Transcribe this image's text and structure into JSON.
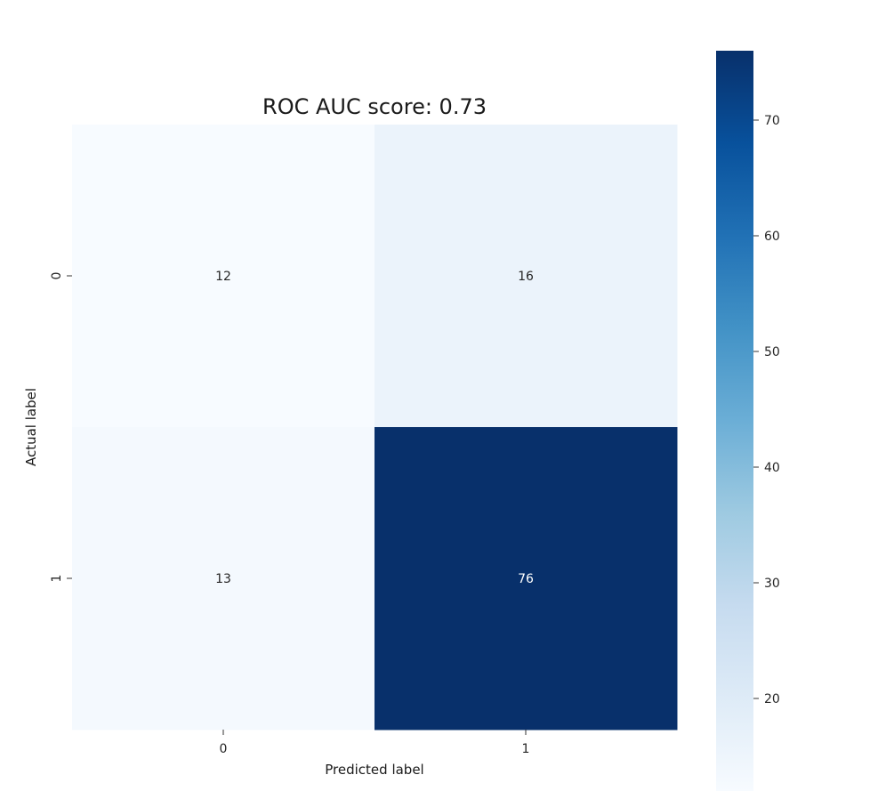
{
  "chart_data": {
    "type": "heatmap",
    "title": "ROC AUC score: 0.73",
    "xlabel": "Predicted label",
    "ylabel": "Actual label",
    "x_categories": [
      "0",
      "1"
    ],
    "y_categories": [
      "0",
      "1"
    ],
    "values": [
      [
        12,
        16
      ],
      [
        13,
        76
      ]
    ],
    "colormap": "Blues",
    "colorbar": {
      "range": [
        12,
        76
      ],
      "ticks": [
        20,
        30,
        40,
        50,
        60,
        70
      ],
      "tick_labels": [
        "20",
        "30",
        "40",
        "50",
        "60",
        "70"
      ]
    },
    "grid": false
  }
}
